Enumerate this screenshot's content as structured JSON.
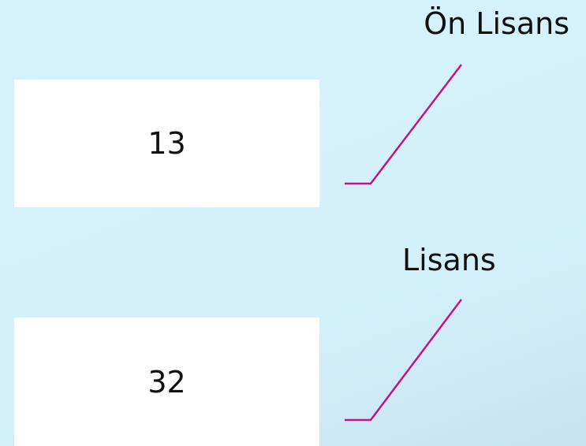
{
  "items": [
    {
      "label": "Ön Lisans",
      "value": 13
    },
    {
      "label": "Lisans",
      "value": 32
    }
  ]
}
